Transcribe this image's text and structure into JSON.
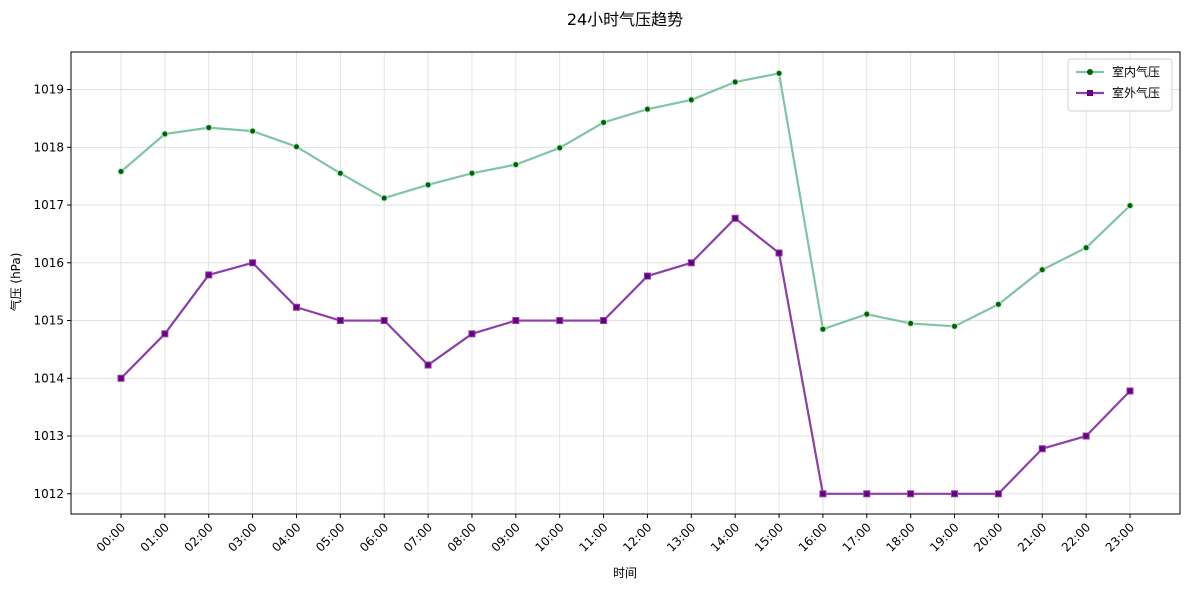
{
  "chart_data": {
    "type": "line",
    "title": "24小时气压趋势",
    "xlabel": "时间",
    "ylabel": "气压 (hPa)",
    "categories": [
      "00:00",
      "01:00",
      "02:00",
      "03:00",
      "04:00",
      "05:00",
      "06:00",
      "07:00",
      "08:00",
      "09:00",
      "10:00",
      "11:00",
      "12:00",
      "13:00",
      "14:00",
      "15:00",
      "16:00",
      "17:00",
      "18:00",
      "19:00",
      "20:00",
      "21:00",
      "22:00",
      "23:00"
    ],
    "ylim": [
      1011.65,
      1019.65
    ],
    "yticks": [
      1012,
      1013,
      1014,
      1015,
      1016,
      1017,
      1018,
      1019
    ],
    "grid": true,
    "legend_position": "top-right",
    "series": [
      {
        "name": "室内气压",
        "color": "#7fc4a4",
        "marker": "circle",
        "marker_color": "#006400",
        "values": [
          1017.58,
          1018.23,
          1018.34,
          1018.28,
          1018.01,
          1017.55,
          1017.12,
          1017.35,
          1017.55,
          1017.7,
          1017.99,
          1018.43,
          1018.66,
          1018.82,
          1019.13,
          1019.28,
          1014.85,
          1015.11,
          1014.95,
          1014.9,
          1015.28,
          1015.88,
          1016.26,
          1016.99
        ]
      },
      {
        "name": "室外气压",
        "color": "#8b3fa8",
        "marker": "square",
        "marker_color": "#6a0080",
        "values": [
          1014.0,
          1014.77,
          1015.79,
          1016.0,
          1015.23,
          1015.0,
          1015.0,
          1014.23,
          1014.77,
          1015.0,
          1015.0,
          1015.0,
          1015.77,
          1016.0,
          1016.77,
          1016.17,
          1012.0,
          1012.0,
          1012.0,
          1012.0,
          1012.0,
          1012.78,
          1013.0,
          1013.78
        ]
      }
    ]
  }
}
